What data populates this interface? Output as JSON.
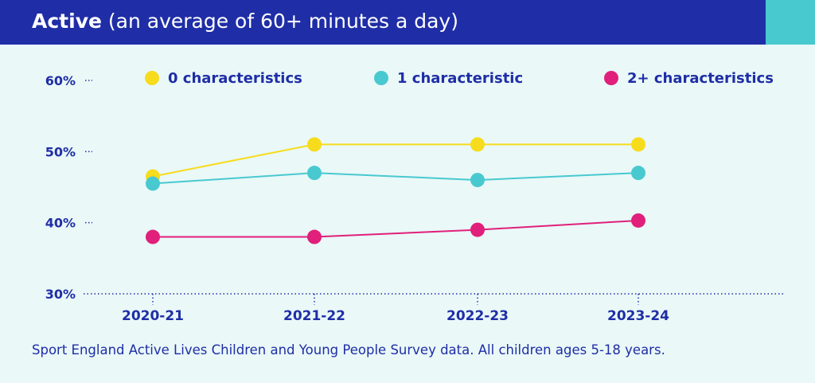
{
  "header": {
    "title": "Active",
    "subtitle": "(an average of 60+ minutes a day)",
    "background": "#1f2ea6",
    "accent": "#48c9d0"
  },
  "chart_data": {
    "type": "line",
    "title": "Active (an average of 60+ minutes a day)",
    "xlabel": "",
    "ylabel": "",
    "categories": [
      "2020-21",
      "2021-22",
      "2022-23",
      "2023-24"
    ],
    "y_ticks": [
      "60%",
      "50%",
      "40%",
      "30%"
    ],
    "ylim": [
      30,
      60
    ],
    "grid": false,
    "legend_position": "top",
    "series": [
      {
        "name": "0 characteristics",
        "color": "#f6dc1c",
        "values": [
          46.5,
          51,
          51,
          51
        ]
      },
      {
        "name": "1 characteristic",
        "color": "#48c9d0",
        "values": [
          45.5,
          47,
          46,
          47
        ]
      },
      {
        "name": "2+ characteristics",
        "color": "#e0207a",
        "values": [
          38,
          38,
          39,
          40.3
        ]
      }
    ]
  },
  "footer": {
    "source": "Sport England Active Lives Children and Young People Survey data.  All children ages 5-18 years."
  }
}
